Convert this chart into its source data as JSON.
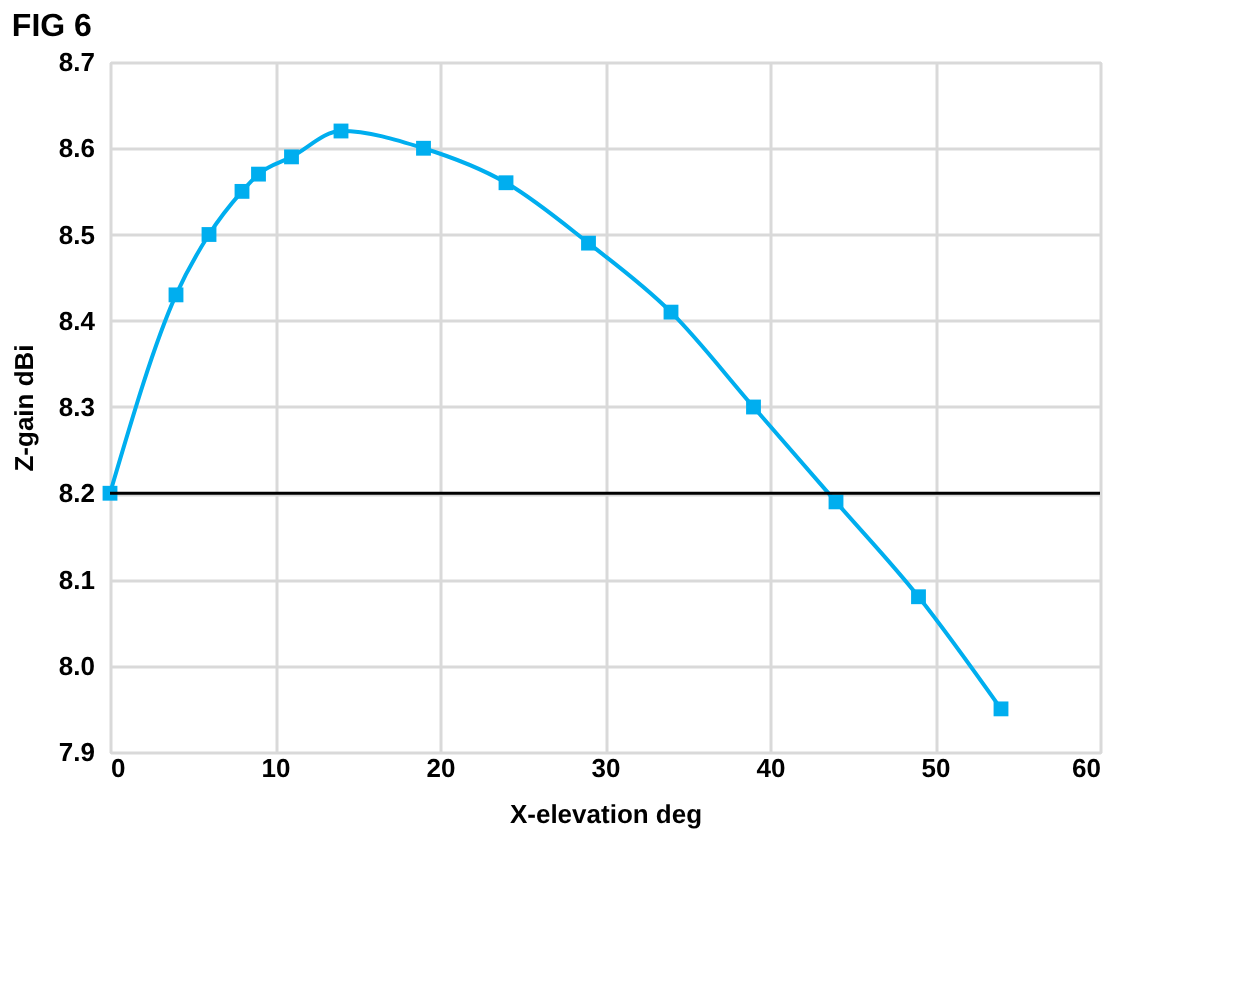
{
  "chart_data": {
    "type": "line",
    "title": "FIG 6",
    "xlabel": "X-elevation deg",
    "ylabel": "Z-gain dBi",
    "x": [
      0,
      4,
      6,
      8,
      9,
      11,
      14,
      19,
      24,
      29,
      34,
      39,
      44,
      49,
      54
    ],
    "series": [
      {
        "color": "#00aeef",
        "values": [
          8.2,
          8.43,
          8.5,
          8.55,
          8.57,
          8.59,
          8.62,
          8.6,
          8.56,
          8.49,
          8.41,
          8.3,
          8.19,
          8.08,
          7.95
        ]
      }
    ],
    "xlim": [
      0,
      60
    ],
    "xticks": [
      0,
      10,
      20,
      30,
      40,
      50,
      60
    ],
    "ylim": [
      7.9,
      8.7
    ],
    "yticks": [
      {
        "value": 7.9,
        "label": "7.9"
      },
      {
        "value": 8.0,
        "label": "8.0"
      },
      {
        "value": 8.1,
        "label": "8.1"
      },
      {
        "value": 8.2,
        "label": "8.2"
      },
      {
        "value": 8.3,
        "label": "8.3"
      },
      {
        "value": 8.4,
        "label": "8.4"
      },
      {
        "value": 8.5,
        "label": "8.5"
      },
      {
        "value": 8.6,
        "label": "8.6"
      },
      {
        "value": 8.7,
        "label": "8.7"
      }
    ],
    "ref_lines": [
      {
        "axis": "y",
        "value": 8.2,
        "color": "#000000"
      }
    ],
    "grid": true,
    "marker": "square",
    "line_style": "solid"
  }
}
